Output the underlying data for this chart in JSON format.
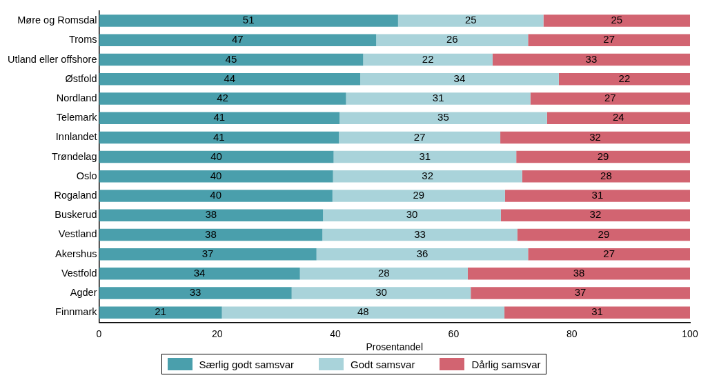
{
  "chart_data": {
    "type": "bar",
    "orientation": "horizontal",
    "stacked": true,
    "xlabel": "Prosentandel",
    "categories": [
      "Møre og Romsdal",
      "Troms",
      "Utland eller offshore",
      "Østfold",
      "Nordland",
      "Telemark",
      "Innlandet",
      "Trøndelag",
      "Oslo",
      "Rogaland",
      "Buskerud",
      "Vestland",
      "Akershus",
      "Vestfold",
      "Agder",
      "Finnmark"
    ],
    "series": [
      {
        "name": "Særlig godt samsvar",
        "color": "#4a9fac",
        "values": [
          50.6,
          46.9,
          44.7,
          44.2,
          41.8,
          40.7,
          40.6,
          39.7,
          39.6,
          39.5,
          37.9,
          37.8,
          36.8,
          34.0,
          32.6,
          20.8
        ],
        "value_labels": [
          "51",
          "47",
          "45",
          "44",
          "42",
          "41",
          "41",
          "40",
          "40",
          "40",
          "38",
          "38",
          "37",
          "34",
          "33",
          "21"
        ]
      },
      {
        "name": "Godt samsvar",
        "color": "#a9d3da",
        "values": [
          24.6,
          25.7,
          21.9,
          33.6,
          31.2,
          35.1,
          27.3,
          30.9,
          32.0,
          29.2,
          30.1,
          33.0,
          35.8,
          28.4,
          30.3,
          47.8
        ],
        "value_labels": [
          "25",
          "26",
          "22",
          "34",
          "31",
          "35",
          "27",
          "31",
          "32",
          "29",
          "30",
          "33",
          "36",
          "28",
          "30",
          "48"
        ]
      },
      {
        "name": "Dårlig samsvar",
        "color": "#d26471",
        "values": [
          24.8,
          27.4,
          33.4,
          22.2,
          27.0,
          24.2,
          32.1,
          29.4,
          28.4,
          31.3,
          32.0,
          29.2,
          27.4,
          37.6,
          37.1,
          31.4
        ],
        "value_labels": [
          "25",
          "27",
          "33",
          "22",
          "27",
          "24",
          "32",
          "29",
          "28",
          "31",
          "32",
          "29",
          "27",
          "38",
          "37",
          "31"
        ]
      }
    ],
    "xlim": [
      0,
      100
    ],
    "xticks": [
      0,
      20,
      40,
      60,
      80,
      100
    ],
    "grid": false,
    "legend": "bottom"
  }
}
